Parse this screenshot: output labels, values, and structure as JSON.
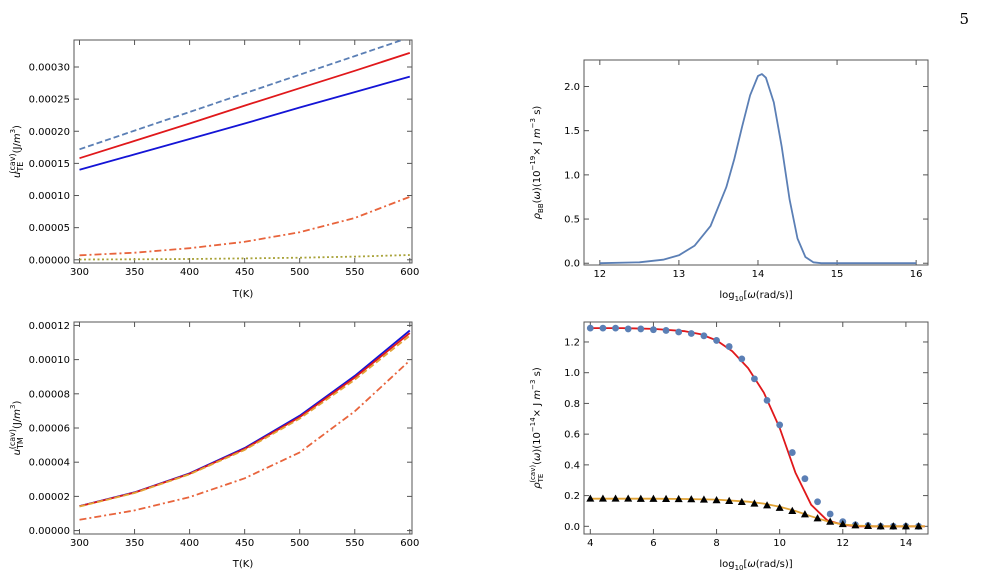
{
  "page_number": "5",
  "colors": {
    "steel_blue": "#5b7fb5",
    "red": "#e0181b",
    "blue": "#1414d6",
    "orange": "#e8643c",
    "olive": "#a9a33a",
    "gold": "#e2a436",
    "black": "#000000"
  },
  "chart_data": [
    {
      "id": "A",
      "type": "line",
      "xlabel": "T(K)",
      "ylabel": "u_TE^(cav)(J/m^3)",
      "xlim": [
        295,
        602
      ],
      "ylim": [
        -5e-06,
        0.000342
      ],
      "xticks": [
        300,
        350,
        400,
        450,
        500,
        550,
        600
      ],
      "yticks": [
        0.0,
        5e-05,
        0.0001,
        0.00015,
        0.0002,
        0.00025,
        0.0003
      ],
      "ytick_labels": [
        "0.00000",
        "0.00005",
        "0.00010",
        "0.00015",
        "0.00020",
        "0.00025",
        "0.00030"
      ],
      "series": [
        {
          "style": "dashed",
          "color": "#5b7fb5",
          "x": [
            300,
            350,
            400,
            450,
            500,
            550,
            600
          ],
          "y": [
            0.000172,
            0.000201,
            0.00023,
            0.000259,
            0.000288,
            0.000317,
            0.000346
          ]
        },
        {
          "style": "solid",
          "color": "#e0181b",
          "x": [
            300,
            350,
            400,
            450,
            500,
            550,
            600
          ],
          "y": [
            0.000158,
            0.000185,
            0.000212,
            0.00024,
            0.000267,
            0.000294,
            0.000322
          ]
        },
        {
          "style": "solid",
          "color": "#1414d6",
          "x": [
            300,
            350,
            400,
            450,
            500,
            550,
            600
          ],
          "y": [
            0.00014,
            0.000164,
            0.000188,
            0.000212,
            0.000237,
            0.000261,
            0.000285
          ]
        },
        {
          "style": "dashdot",
          "color": "#e8643c",
          "x": [
            300,
            350,
            400,
            450,
            500,
            550,
            600
          ],
          "y": [
            7e-06,
            1.1e-05,
            1.8e-05,
            2.8e-05,
            4.3e-05,
            6.5e-05,
            9.8e-05
          ]
        },
        {
          "style": "dotted",
          "color": "#a9a33a",
          "x": [
            300,
            350,
            400,
            450,
            500,
            550,
            600
          ],
          "y": [
            5e-07,
            8e-07,
            1.3e-06,
            2.1e-06,
            3.3e-06,
            5e-06,
            7.5e-06
          ]
        }
      ]
    },
    {
      "id": "B",
      "type": "line",
      "xlabel": "log10[ω(rad/s)]",
      "ylabel": "ρ_BB(ω)(10^-19× J m^-3 s)",
      "xlim": [
        11.8,
        16.15
      ],
      "ylim": [
        -0.02,
        2.3
      ],
      "xticks": [
        12,
        13,
        14,
        15,
        16
      ],
      "yticks": [
        0.0,
        0.5,
        1.0,
        1.5,
        2.0
      ],
      "ytick_labels": [
        "0.0",
        "0.5",
        "1.0",
        "1.5",
        "2.0"
      ],
      "series": [
        {
          "style": "solid",
          "color": "#5b7fb5",
          "x": [
            12.0,
            12.5,
            12.8,
            13.0,
            13.2,
            13.4,
            13.6,
            13.7,
            13.8,
            13.9,
            14.0,
            14.05,
            14.1,
            14.2,
            14.3,
            14.4,
            14.5,
            14.6,
            14.7,
            14.8,
            15.0,
            16.0
          ],
          "y": [
            0.0,
            0.01,
            0.04,
            0.09,
            0.2,
            0.42,
            0.86,
            1.18,
            1.55,
            1.9,
            2.12,
            2.14,
            2.1,
            1.82,
            1.32,
            0.72,
            0.28,
            0.07,
            0.01,
            0.0,
            0.0,
            0.0
          ]
        }
      ]
    },
    {
      "id": "C",
      "type": "line",
      "xlabel": "T(K)",
      "ylabel": "u_TM^(cav)(J/m^3)",
      "xlim": [
        295,
        602
      ],
      "ylim": [
        -2e-06,
        0.000122
      ],
      "xticks": [
        300,
        350,
        400,
        450,
        500,
        550,
        600
      ],
      "yticks": [
        0.0,
        2e-05,
        4e-05,
        6e-05,
        8e-05,
        0.0001,
        0.00012
      ],
      "ytick_labels": [
        "0.00000",
        "0.00002",
        "0.00004",
        "0.00006",
        "0.00008",
        "0.00010",
        "0.00012"
      ],
      "series": [
        {
          "style": "solid",
          "color": "#1414d6",
          "x": [
            300,
            350,
            400,
            450,
            500,
            550,
            600
          ],
          "y": [
            1.43e-05,
            2.24e-05,
            3.35e-05,
            4.83e-05,
            6.72e-05,
            9.05e-05,
            0.000117
          ]
        },
        {
          "style": "solid",
          "color": "#e0181b",
          "x": [
            300,
            350,
            400,
            450,
            500,
            550,
            600
          ],
          "y": [
            1.42e-05,
            2.22e-05,
            3.32e-05,
            4.78e-05,
            6.64e-05,
            8.95e-05,
            0.0001155
          ]
        },
        {
          "style": "dashed",
          "color": "#e2a436",
          "x": [
            300,
            350,
            400,
            450,
            500,
            550,
            600
          ],
          "y": [
            1.41e-05,
            2.2e-05,
            3.29e-05,
            4.72e-05,
            6.55e-05,
            8.82e-05,
            0.000114
          ]
        },
        {
          "style": "dashdot",
          "color": "#e8643c",
          "x": [
            300,
            350,
            400,
            450,
            500,
            550,
            600
          ],
          "y": [
            6.3e-06,
            1.18e-05,
            1.96e-05,
            3.06e-05,
            4.57e-05,
            6.97e-05,
            9.95e-05
          ]
        }
      ]
    },
    {
      "id": "D",
      "type": "line",
      "xlabel": "log10[ω(rad/s)]",
      "ylabel": "ρ_TE^(cav)(ω)(10^-14× J m^-3 s)",
      "xlim": [
        3.8,
        14.7
      ],
      "ylim": [
        -0.05,
        1.33
      ],
      "xticks": [
        4,
        6,
        8,
        10,
        12,
        14
      ],
      "yticks": [
        0.0,
        0.2,
        0.4,
        0.6,
        0.8,
        1.0,
        1.2
      ],
      "ytick_labels": [
        "0.0",
        "0.2",
        "0.4",
        "0.6",
        "0.8",
        "1.0",
        "1.2"
      ],
      "series": [
        {
          "style": "solid",
          "color": "#e0181b",
          "x": [
            4.0,
            5.0,
            6.0,
            7.0,
            7.5,
            8.0,
            8.5,
            9.0,
            9.5,
            10.0,
            10.5,
            11.0,
            11.5,
            12.0,
            12.5,
            13.0,
            14.0,
            14.6
          ],
          "y": [
            1.29,
            1.29,
            1.285,
            1.27,
            1.25,
            1.21,
            1.14,
            1.03,
            0.87,
            0.64,
            0.35,
            0.14,
            0.04,
            0.01,
            0.0,
            0.0,
            0.0,
            0.0
          ]
        },
        {
          "style": "markers-circle",
          "color": "#5b7fb5",
          "x": [
            4.0,
            4.4,
            4.8,
            5.2,
            5.6,
            6.0,
            6.4,
            6.8,
            7.2,
            7.6,
            8.0,
            8.4,
            8.8,
            9.2,
            9.6,
            10.0,
            10.4,
            10.8,
            11.2,
            11.6,
            12.0,
            12.4,
            12.8,
            13.2,
            13.6,
            14.0,
            14.4
          ],
          "y": [
            1.29,
            1.29,
            1.29,
            1.285,
            1.285,
            1.28,
            1.275,
            1.265,
            1.255,
            1.24,
            1.21,
            1.17,
            1.09,
            0.96,
            0.82,
            0.66,
            0.48,
            0.31,
            0.16,
            0.08,
            0.03,
            0.01,
            0.005,
            0.0,
            0.0,
            0.0,
            0.0
          ]
        },
        {
          "style": "solid",
          "color": "#e2a436",
          "x": [
            4.0,
            6.0,
            7.0,
            8.0,
            9.0,
            9.5,
            10.0,
            10.5,
            11.0,
            11.5,
            12.0,
            12.5,
            13.0,
            14.0,
            14.6
          ],
          "y": [
            0.18,
            0.18,
            0.178,
            0.174,
            0.16,
            0.148,
            0.128,
            0.1,
            0.065,
            0.033,
            0.012,
            0.004,
            0.0,
            0.0,
            0.0
          ]
        },
        {
          "style": "markers-triangle",
          "color": "#000000",
          "x": [
            4.0,
            4.4,
            4.8,
            5.2,
            5.6,
            6.0,
            6.4,
            6.8,
            7.2,
            7.6,
            8.0,
            8.4,
            8.8,
            9.2,
            9.6,
            10.0,
            10.4,
            10.8,
            11.2,
            11.6,
            12.0,
            12.4,
            12.8,
            13.2,
            13.6,
            14.0,
            14.4
          ],
          "y": [
            0.18,
            0.18,
            0.18,
            0.18,
            0.179,
            0.179,
            0.178,
            0.177,
            0.176,
            0.174,
            0.17,
            0.165,
            0.158,
            0.148,
            0.136,
            0.12,
            0.1,
            0.078,
            0.052,
            0.03,
            0.014,
            0.006,
            0.002,
            0.0,
            0.0,
            0.0,
            0.0
          ]
        }
      ]
    }
  ]
}
